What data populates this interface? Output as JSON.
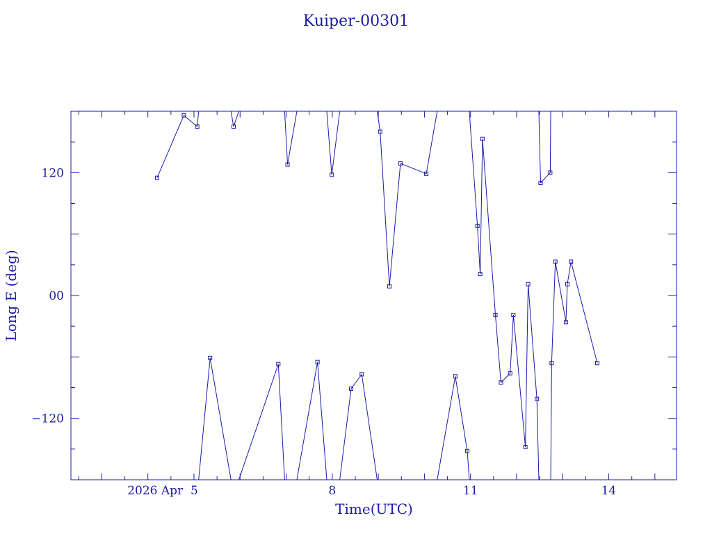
{
  "chart_data": {
    "type": "line",
    "title": "Kuiper-00301",
    "xlabel": "Time(UTC)",
    "ylabel": "Long E (deg)",
    "x_unit": "days of April 2026 (UTC)",
    "xlim": [
      2.33,
      15.47
    ],
    "ylim": [
      -180,
      180
    ],
    "wrap": [
      -180,
      180
    ],
    "grid": false,
    "color": "#1a1aa8",
    "x_ticks": [
      {
        "value": 5,
        "label": "2026 Apr  5"
      },
      {
        "value": 8,
        "label": "8"
      },
      {
        "value": 11,
        "label": "11"
      },
      {
        "value": 14,
        "label": "14"
      }
    ],
    "y_ticks": [
      {
        "value": 120,
        "label": "120"
      },
      {
        "value": 0,
        "label": "00"
      },
      {
        "value": -120,
        "label": "−120"
      }
    ],
    "series": [
      {
        "x": [
          4.2,
          4.78,
          5.07,
          5.35,
          5.86,
          6.83,
          7.03,
          7.68,
          7.99,
          8.41,
          8.64,
          9.04,
          9.24,
          9.48,
          10.04,
          10.67,
          10.93,
          11.15,
          11.21,
          11.26,
          11.54,
          11.66,
          11.86,
          11.93,
          12.19,
          12.25,
          12.44,
          12.52,
          12.73,
          12.76,
          12.84,
          13.07,
          13.1,
          13.18,
          13.75
        ],
        "y": [
          115,
          176,
          165,
          -61,
          165,
          -67,
          128,
          -65,
          118,
          -91,
          -77,
          160,
          9,
          129,
          119,
          -79,
          -152,
          68,
          21,
          153,
          -19,
          -85,
          -76,
          -19,
          -148,
          11,
          -101,
          110,
          120,
          -66,
          33,
          -26,
          11,
          33,
          -66
        ]
      }
    ]
  }
}
